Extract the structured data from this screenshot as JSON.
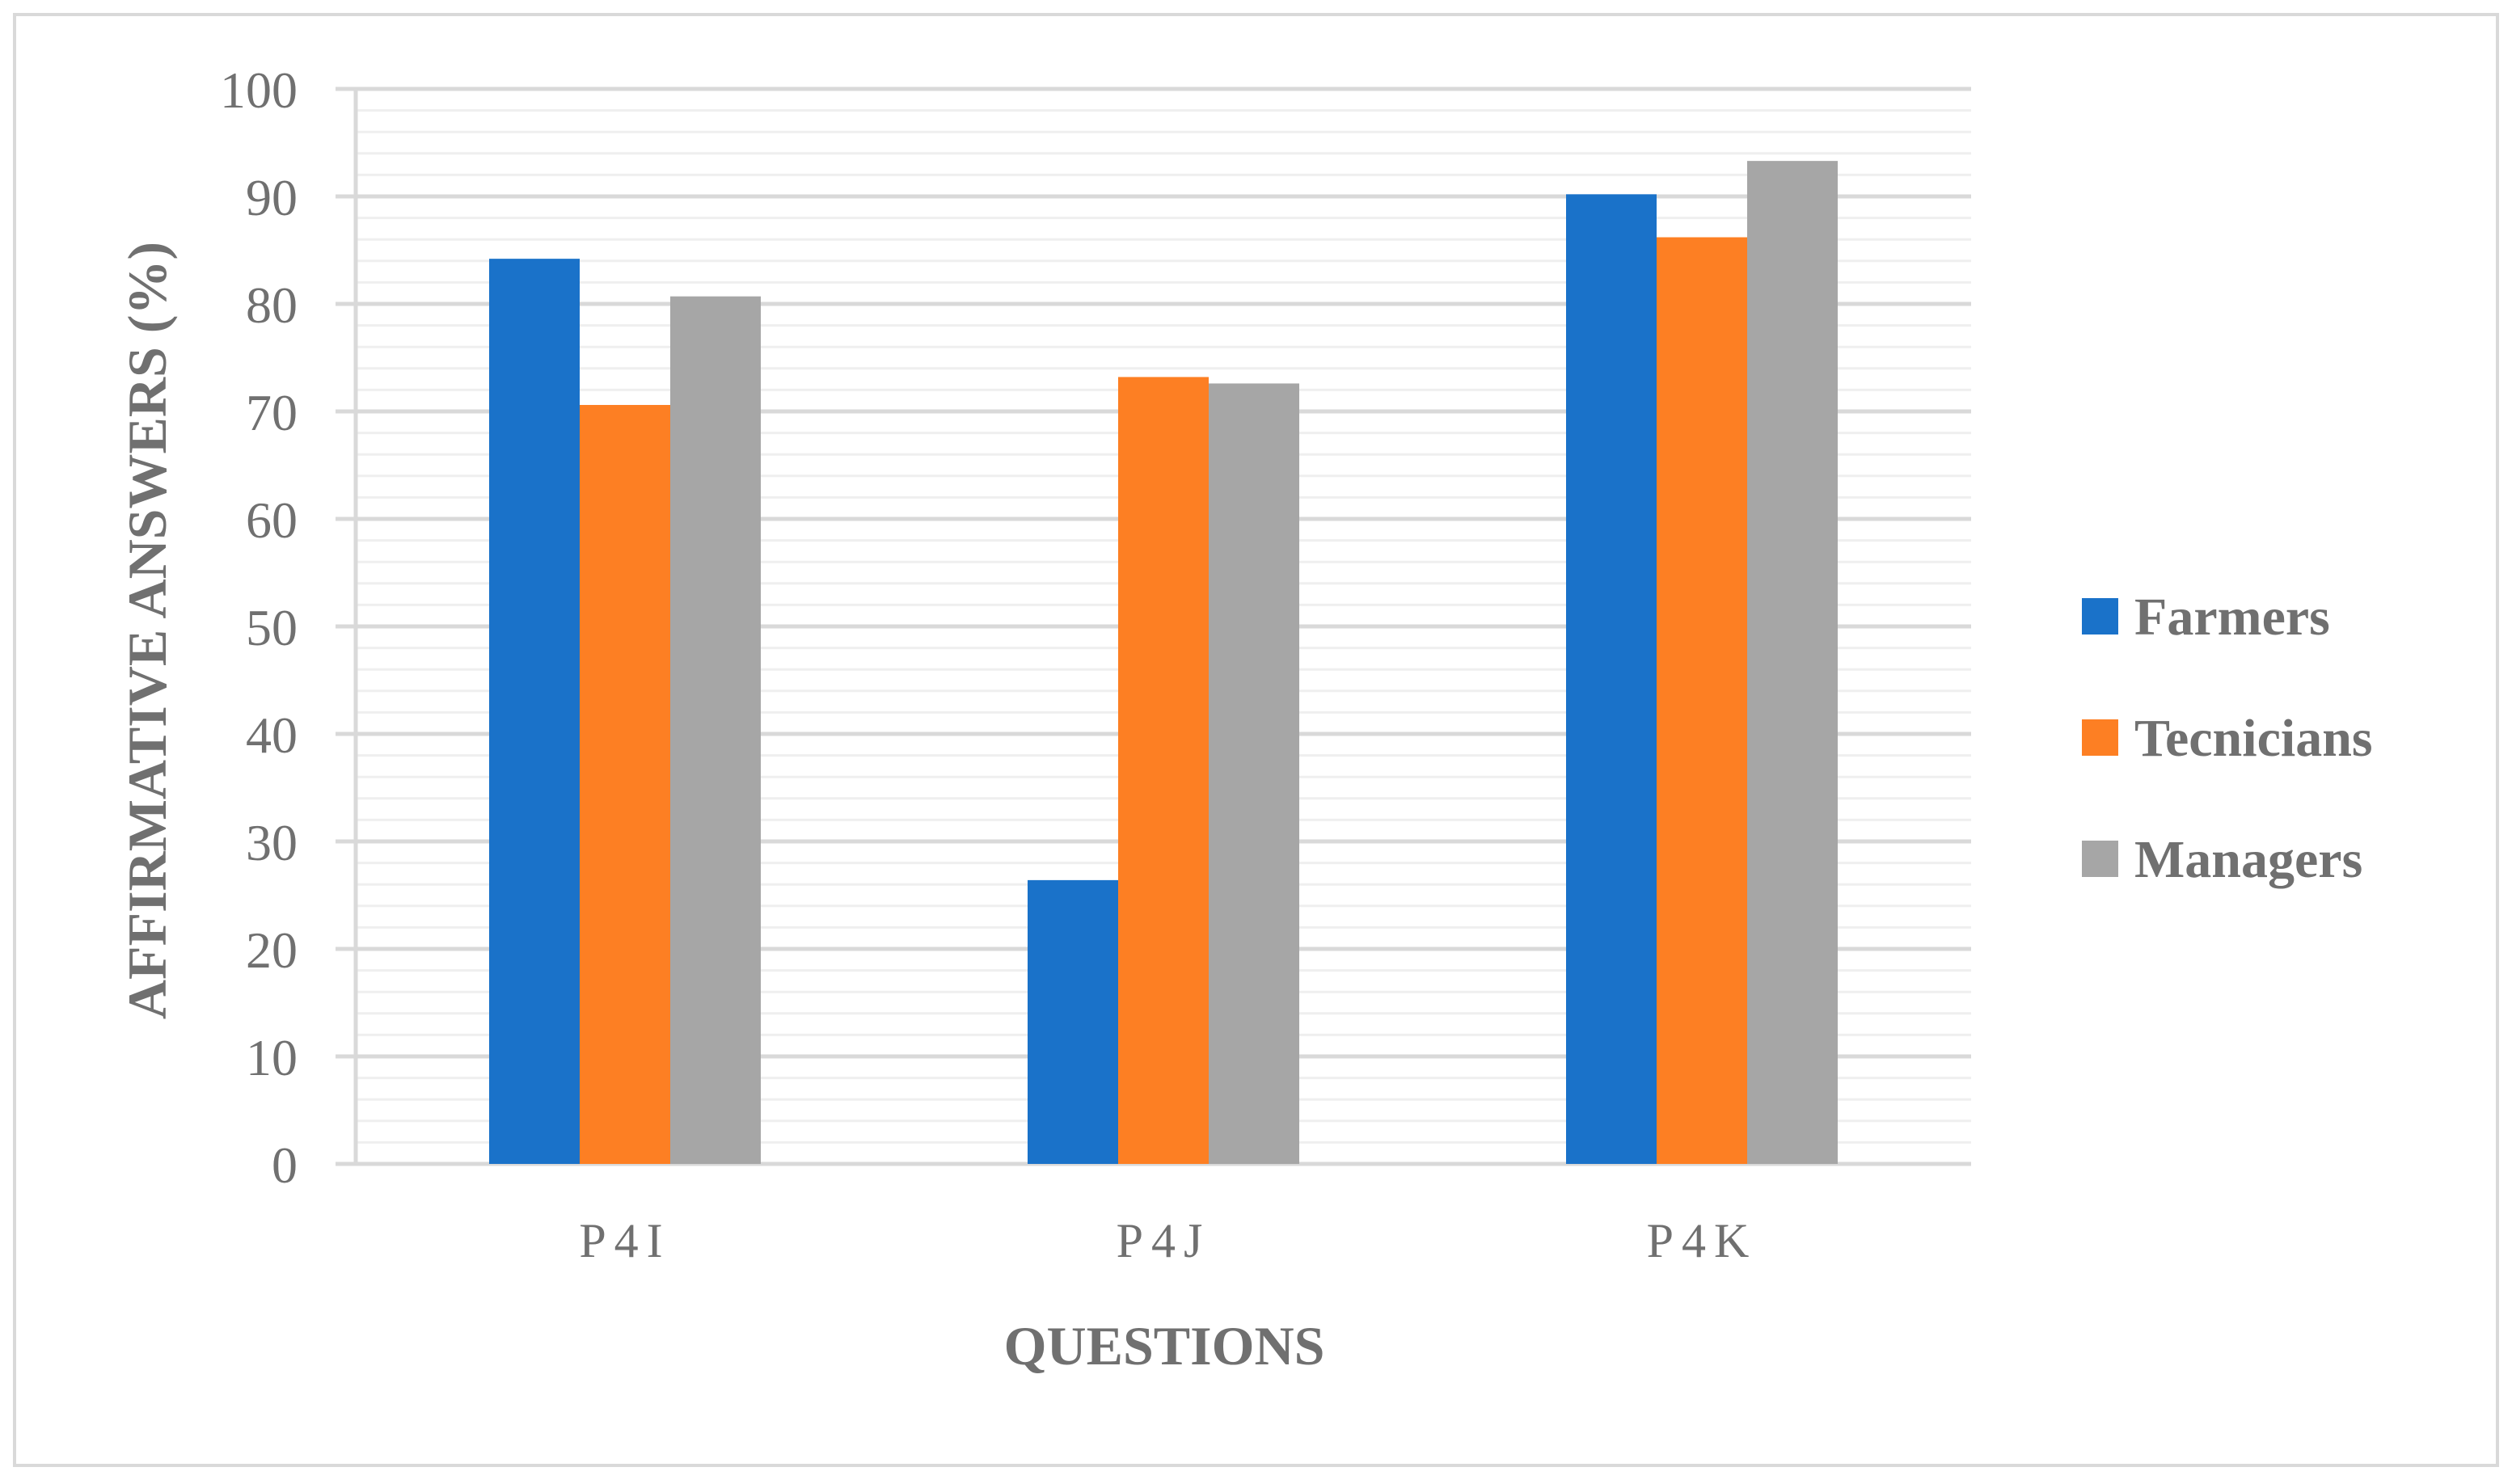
{
  "chart_data": {
    "type": "bar",
    "title": "",
    "xlabel": "QUESTIONS",
    "ylabel": "AFFIRMATIVE ANSWERS (%)",
    "categories": [
      "P4I",
      "P4J",
      "P4K"
    ],
    "ylim": [
      0,
      100
    ],
    "yticks": [
      0,
      10,
      20,
      30,
      40,
      50,
      60,
      70,
      80,
      90,
      100
    ],
    "grid": true,
    "legend_position": "right",
    "series": [
      {
        "name": "Farmers",
        "color": "#1a72c9",
        "values": [
          84.2,
          26.4,
          90.2
        ]
      },
      {
        "name": "Tecnicians",
        "color": "#fd7f23",
        "values": [
          70.6,
          73.2,
          86.2
        ]
      },
      {
        "name": "Managers",
        "color": "#a6a6a6",
        "values": [
          80.7,
          72.6,
          93.3
        ]
      }
    ]
  },
  "colors": {
    "text": "#707070",
    "major_grid": "#d9d9d9",
    "minor_grid": "#efefef",
    "border": "#d9d9d9"
  }
}
